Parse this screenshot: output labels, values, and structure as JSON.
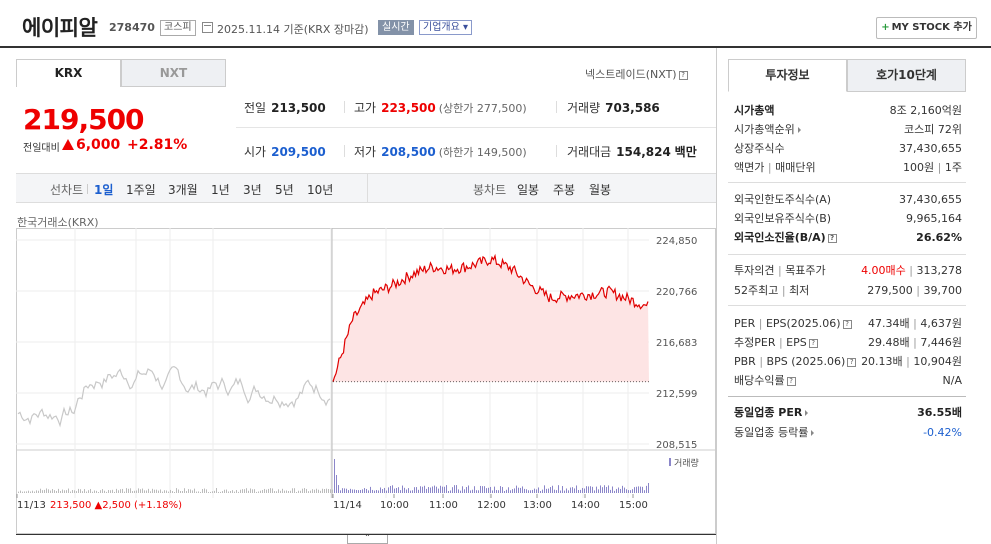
{
  "header": {
    "name": "에이피알",
    "code": "278470",
    "market": "코스피",
    "date": "2025.11.14 기준(KRX 장마감)",
    "realtime": "실시간",
    "company_info": "기업개요",
    "mystock": "MY STOCK 추가"
  },
  "tabs": {
    "krx": "KRX",
    "nxt": "NXT"
  },
  "nextrade": "넥스트레이드(NXT)",
  "quote": {
    "price": "219,500",
    "change_label": "전일대비",
    "change": "6,000",
    "change_pct": "+2.81%",
    "prev_label": "전일",
    "prev": "213,500",
    "high_label": "고가",
    "high": "223,500",
    "upper": "(상한가 277,500)",
    "volume_label": "거래량",
    "volume": "703,586",
    "open_label": "시가",
    "open": "209,500",
    "low_label": "저가",
    "low": "208,500",
    "lower": "(하한가 149,500)",
    "amount_label": "거래대금",
    "amount": "154,824",
    "amount_unit": "백만"
  },
  "periods": {
    "line_label": "선차트",
    "items": [
      "1일",
      "1주일",
      "3개월",
      "1년",
      "3년",
      "5년",
      "10년"
    ],
    "candle_label": "봉차트",
    "candles": [
      "일봉",
      "주봉",
      "월봉"
    ]
  },
  "chart_title": "한국거래소(KRX)",
  "chart_data": {
    "type": "line",
    "y_ticks": [
      "224,850",
      "220,766",
      "216,683",
      "212,599",
      "208,515"
    ],
    "ylim": [
      208515,
      224850
    ],
    "x_ticks": [
      "11/13",
      "11/14",
      "10:00",
      "11:00",
      "12:00",
      "13:00",
      "14:00",
      "15:00"
    ],
    "prev_close": 213500,
    "prev_day_summary": {
      "date": "11/13",
      "price": "213,500",
      "change": "2,500",
      "pct": "(+1.18%)"
    },
    "volume_label": "거래량",
    "series": [
      {
        "x": [
          "11/14 09:00",
          "09:10",
          "09:20",
          "09:40",
          "10:00",
          "10:30",
          "11:00",
          "11:30",
          "12:00",
          "12:15",
          "12:30",
          "13:00",
          "13:30",
          "14:00",
          "14:30",
          "15:00",
          "15:20"
        ],
        "values": [
          213500,
          218500,
          220500,
          221200,
          222100,
          222700,
          222500,
          222800,
          223300,
          222600,
          221200,
          220200,
          220400,
          220500,
          220700,
          220100,
          219500
        ]
      }
    ],
    "colors": {
      "up": "#e00000",
      "fill": "#fde4e4",
      "prev_line": "#c8c8c8",
      "volume": "#8b86c9"
    }
  },
  "right": {
    "tab_info": "투자정보",
    "tab_orderbook": "호가10단계",
    "market_cap_label": "시가총액",
    "market_cap": "8조 2,160억원",
    "rank_label": "시가총액순위",
    "rank": "코스피 72위",
    "shares_label": "상장주식수",
    "shares": "37,430,655",
    "face_label": "액면가",
    "lot_label": "매매단위",
    "face": "100원",
    "lot": "1주",
    "foreign_limit_label": "외국인한도주식수(A)",
    "foreign_limit": "37,430,655",
    "foreign_hold_label": "외국인보유주식수(B)",
    "foreign_hold": "9,965,164",
    "foreign_ratio_label": "외국인소진율(B/A)",
    "foreign_ratio": "26.62%",
    "opinion_label": "투자의견",
    "target_label": "목표주가",
    "opinion": "4.00매수",
    "target": "313,278",
    "w52_high_label": "52주최고",
    "w52_low_label": "최저",
    "w52_high": "279,500",
    "w52_low": "39,700",
    "per_label": "PER",
    "eps_label": "EPS(2025.06)",
    "per": "47.34배",
    "eps": "4,637원",
    "est_per_label": "추정PER",
    "est_eps_label": "EPS",
    "est_per": "29.48배",
    "est_eps": "7,446원",
    "pbr_label": "PBR",
    "bps_label": "BPS (2025.06)",
    "pbr": "20.13배",
    "bps": "10,904원",
    "div_label": "배당수익률",
    "div": "N/A",
    "ind_per_label": "동일업종 PER",
    "ind_per": "36.55배",
    "ind_rate_label": "동일업종 등락률",
    "ind_rate": "-0.42%"
  }
}
